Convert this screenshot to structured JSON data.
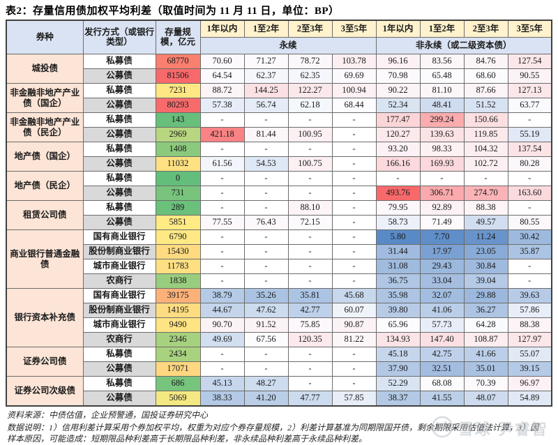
{
  "title": "表2：存量信用债加权平均利差（取值时间为 11 月 11 日，单位：BP）",
  "header": {
    "col_bond_type": "券种",
    "col_issue_method": "发行方式（或银行类型）",
    "col_outstanding": "存量规模，亿元",
    "tenors": [
      "1年以内",
      "1至2年",
      "2至3年",
      "3至5年"
    ],
    "group_perpetual": "永续",
    "group_non_perpetual": "非永续（或二级资本债）",
    "dash": "-"
  },
  "scales": {
    "stock": {
      "min": 0,
      "mid": 5460,
      "max": 81506,
      "min_color": "#63be7b",
      "mid_color": "#ffeb84",
      "max_color": "#f8696b"
    },
    "spread": {
      "min": 5.8,
      "mid": 65,
      "max": 493.76,
      "min_color": "#5a8ac6",
      "mid_color": "#fcfcff",
      "max_color": "#f8696b"
    }
  },
  "groups": [
    {
      "name": "城投债",
      "rows": [
        {
          "method": "私募债",
          "stock": "68770",
          "perp": [
            "70.60",
            "71.27",
            "78.72",
            "103.78"
          ],
          "nonperp": [
            "96.16",
            "83.56",
            "84.76",
            "127.54"
          ]
        },
        {
          "method": "公募债",
          "stock": "81506",
          "perp": [
            "64.54",
            "62.37",
            "62.35",
            "69.69"
          ],
          "nonperp": [
            "70.98",
            "65.48",
            "68.60",
            "90.55"
          ]
        }
      ]
    },
    {
      "name": "非金融非地产产业债（国企）",
      "rows": [
        {
          "method": "私募债",
          "stock": "7231",
          "perp": [
            "88.72",
            "144.25",
            "122.27",
            "100.94"
          ],
          "nonperp": [
            "90.22",
            "81.10",
            "87.66",
            "127.13"
          ]
        },
        {
          "method": "公募债",
          "stock": "80293",
          "perp": [
            "57.38",
            "56.74",
            "62.18",
            "68.44"
          ],
          "nonperp": [
            "52.34",
            "48.41",
            "51.52",
            "63.77"
          ]
        }
      ]
    },
    {
      "name": "非金融非地产产业债（民企）",
      "rows": [
        {
          "method": "私募债",
          "stock": "143",
          "perp": [
            null,
            null,
            null,
            null
          ],
          "nonperp": [
            "177.47",
            "299.24",
            "150.66",
            null
          ]
        },
        {
          "method": "公募债",
          "stock": "2969",
          "perp": [
            "421.18",
            "81.44",
            "100.95",
            null
          ],
          "nonperp": [
            "120.27",
            "139.63",
            "119.85",
            "55.19"
          ]
        }
      ]
    },
    {
      "name": "地产债（国企）",
      "rows": [
        {
          "method": "私募债",
          "stock": "1408",
          "perp": [
            null,
            null,
            null,
            null
          ],
          "nonperp": [
            "93.20",
            "98.33",
            "104.32",
            "137.54"
          ]
        },
        {
          "method": "公募债",
          "stock": "11032",
          "perp": [
            "61.56",
            "54.53",
            "100.75",
            null
          ],
          "nonperp": [
            "166.16",
            "169.93",
            "102.72",
            "80.28"
          ]
        }
      ]
    },
    {
      "name": "地产债（民企）",
      "rows": [
        {
          "method": "私募债",
          "stock": "0",
          "perp": [
            null,
            null,
            null,
            null
          ],
          "nonperp": [
            null,
            null,
            null,
            null
          ]
        },
        {
          "method": "公募债",
          "stock": "731",
          "perp": [
            null,
            null,
            null,
            null
          ],
          "nonperp": [
            "493.76",
            "306.71",
            "274.70",
            "163.60"
          ]
        }
      ]
    },
    {
      "name": "租赁公司债",
      "rows": [
        {
          "method": "私募债",
          "stock": "289",
          "perp": [
            null,
            null,
            "88.10",
            null
          ],
          "nonperp": [
            "79.95",
            "92.89",
            "88.38",
            null
          ]
        },
        {
          "method": "公募债",
          "stock": "5851",
          "perp": [
            "77.55",
            "76.43",
            "72.15",
            null
          ],
          "nonperp": [
            "58.73",
            "71.49",
            "49.57",
            "80.55"
          ]
        }
      ]
    },
    {
      "name": "商业银行普通金融债",
      "rows": [
        {
          "method": "国有商业银行",
          "stock": "6790",
          "perp": [
            null,
            null,
            null,
            null
          ],
          "nonperp": [
            "5.80",
            "7.70",
            "11.24",
            "30.42"
          ]
        },
        {
          "method": "股份制商业银行",
          "stock": "15430",
          "perp": [
            null,
            null,
            null,
            null
          ],
          "nonperp": [
            "31.44",
            "17.97",
            "23.05",
            "35.87"
          ]
        },
        {
          "method": "城市商业银行",
          "stock": "11783",
          "perp": [
            null,
            null,
            null,
            null
          ],
          "nonperp": [
            "31.08",
            "29.43",
            "30.84",
            null
          ]
        },
        {
          "method": "农商行",
          "stock": "1838",
          "perp": [
            null,
            null,
            null,
            null
          ],
          "nonperp": [
            "36.75",
            "33.04",
            "39.04",
            null
          ]
        }
      ]
    },
    {
      "name": "银行资本补充债",
      "rows": [
        {
          "method": "国有商业银行",
          "stock": "39175",
          "perp": [
            "38.79",
            "35.26",
            "35.81",
            "45.68"
          ],
          "nonperp": [
            "35.98",
            "32.07",
            "29.88",
            "39.63"
          ]
        },
        {
          "method": "股份制商业银行",
          "stock": "14195",
          "perp": [
            "44.67",
            "47.62",
            "42.77",
            "60.07"
          ],
          "nonperp": [
            "39.80",
            "41.06",
            "36.27",
            "57.86"
          ]
        },
        {
          "method": "城市商业银行",
          "stock": "9490",
          "perp": [
            "90.70",
            "91.52",
            "75.85",
            "90.87"
          ],
          "nonperp": [
            "65.96",
            "57.73",
            "64.28",
            "88.38"
          ]
        },
        {
          "method": "农商行",
          "stock": "2346",
          "perp": [
            "49.69",
            "67.56",
            "120.35",
            "81.22"
          ],
          "nonperp": [
            "134.93",
            "147.40",
            "108.87",
            "127.97"
          ]
        }
      ]
    },
    {
      "name": "证券公司债",
      "rows": [
        {
          "method": "私募债",
          "stock": "2434",
          "perp": [
            null,
            null,
            null,
            null
          ],
          "nonperp": [
            "45.18",
            "42.75",
            "41.66",
            "55.07"
          ]
        },
        {
          "method": "公募债",
          "stock": "17071",
          "perp": [
            null,
            null,
            null,
            null
          ],
          "nonperp": [
            "37.90",
            "32.51",
            "35.01",
            "39.15"
          ]
        }
      ]
    },
    {
      "name": "证券公司次级债",
      "rows": [
        {
          "method": "私募债",
          "stock": "686",
          "perp": [
            "45.13",
            "48.27",
            null,
            null
          ],
          "nonperp": [
            "52.29",
            "68.08",
            "70.39",
            "96.97"
          ]
        },
        {
          "method": "公募债",
          "stock": "5069",
          "perp": [
            "38.33",
            "41.20",
            "47.77",
            "57.85"
          ],
          "nonperp": [
            "38.37",
            "41.55",
            "48.07",
            "54.89"
          ]
        }
      ]
    }
  ],
  "footnotes": [
    "资料来源：中债估值，企业预警通，国投证券研究中心",
    "数据说明：1）信用利差计算采用个券加权平均，权重为对应个券存量规模，2）利差计算基准为同期限国开债，剩余期限采用估值法计算，3）因",
    "样本原因，可能造成：短期限品种利差高于长期限品种利差，非永续品种利差高于永续品种利差。"
  ],
  "watermark": {
    "text": "雪球·尹睿智"
  }
}
